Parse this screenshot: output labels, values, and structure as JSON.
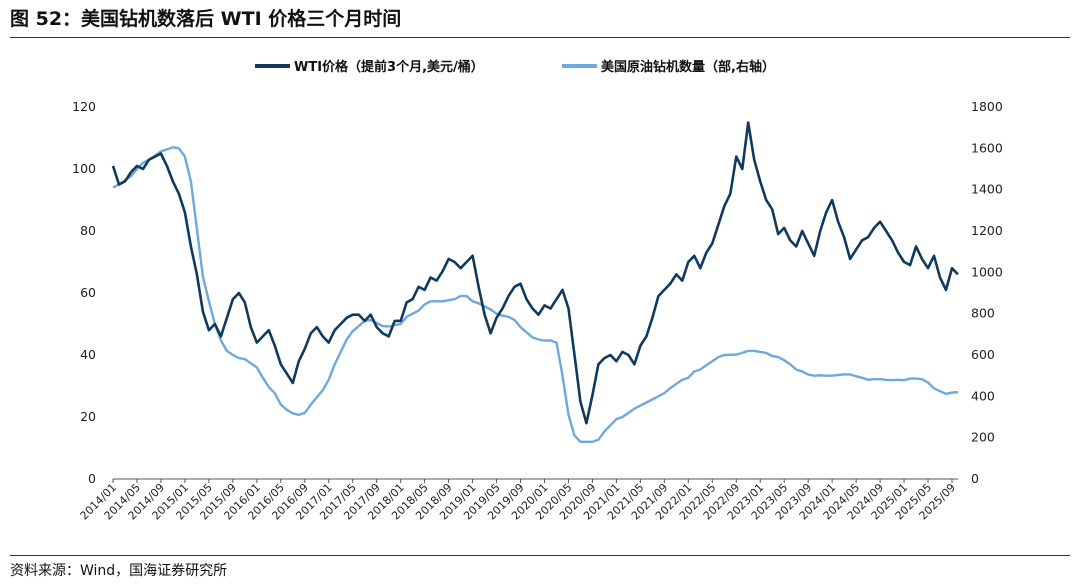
{
  "figure": {
    "title": "图 52：美国钻机数落后 WTI 价格三个月时间",
    "source": "资料来源：Wind，国海证券研究所"
  },
  "colors": {
    "wti": "#0f3a5e",
    "rigs": "#6fa8dc",
    "axis": "#555555"
  },
  "chart_data": {
    "type": "line",
    "legend_position": "top-center",
    "grid": false,
    "x_tick_labels": [
      "2014/01",
      "2014/05",
      "2014/09",
      "2015/01",
      "2015/05",
      "2015/09",
      "2016/01",
      "2016/05",
      "2016/09",
      "2017/01",
      "2017/05",
      "2017/09",
      "2018/01",
      "2018/05",
      "2018/09",
      "2019/01",
      "2019/05",
      "2019/09",
      "2020/01",
      "2020/05",
      "2020/09",
      "2021/01",
      "2021/05",
      "2021/09",
      "2022/01",
      "2022/05",
      "2022/09",
      "2023/01",
      "2023/05",
      "2023/09",
      "2024/01",
      "2024/05",
      "2024/09",
      "2025/01",
      "2025/05",
      "2025/09"
    ],
    "x_range": [
      "2014/01",
      "2025/10"
    ],
    "y_left": {
      "ylim": [
        0,
        120
      ],
      "ticks": [
        0,
        20,
        40,
        60,
        80,
        100,
        120
      ]
    },
    "y_right": {
      "ylim": [
        0,
        1800
      ],
      "ticks": [
        0,
        200,
        400,
        600,
        800,
        1000,
        1200,
        1400,
        1600,
        1800
      ]
    },
    "series": [
      {
        "name": "WTI价格（提前3个月,美元/桶）",
        "axis": "left",
        "points": [
          [
            "2014/01",
            101
          ],
          [
            "2014/02",
            95
          ],
          [
            "2014/03",
            96
          ],
          [
            "2014/04",
            99
          ],
          [
            "2014/05",
            101
          ],
          [
            "2014/06",
            100
          ],
          [
            "2014/07",
            103
          ],
          [
            "2014/08",
            104
          ],
          [
            "2014/09",
            105
          ],
          [
            "2014/10",
            101
          ],
          [
            "2014/11",
            96
          ],
          [
            "2014/12",
            92
          ],
          [
            "2015/01",
            86
          ],
          [
            "2015/02",
            75
          ],
          [
            "2015/03",
            66
          ],
          [
            "2015/04",
            54
          ],
          [
            "2015/05",
            48
          ],
          [
            "2015/06",
            50
          ],
          [
            "2015/07",
            46
          ],
          [
            "2015/08",
            52
          ],
          [
            "2015/09",
            58
          ],
          [
            "2015/10",
            60
          ],
          [
            "2015/11",
            57
          ],
          [
            "2015/12",
            49
          ],
          [
            "2016/01",
            44
          ],
          [
            "2016/02",
            46
          ],
          [
            "2016/03",
            48
          ],
          [
            "2016/04",
            43
          ],
          [
            "2016/05",
            37
          ],
          [
            "2016/06",
            34
          ],
          [
            "2016/07",
            31
          ],
          [
            "2016/08",
            38
          ],
          [
            "2016/09",
            42
          ],
          [
            "2016/10",
            47
          ],
          [
            "2016/11",
            49
          ],
          [
            "2016/12",
            46
          ],
          [
            "2017/01",
            44
          ],
          [
            "2017/02",
            48
          ],
          [
            "2017/03",
            50
          ],
          [
            "2017/04",
            52
          ],
          [
            "2017/05",
            53
          ],
          [
            "2017/06",
            53
          ],
          [
            "2017/07",
            51
          ],
          [
            "2017/08",
            53
          ],
          [
            "2017/09",
            49
          ],
          [
            "2017/10",
            47
          ],
          [
            "2017/11",
            46
          ],
          [
            "2017/12",
            51
          ],
          [
            "2018/01",
            51
          ],
          [
            "2018/02",
            57
          ],
          [
            "2018/03",
            58
          ],
          [
            "2018/04",
            62
          ],
          [
            "2018/05",
            61
          ],
          [
            "2018/06",
            65
          ],
          [
            "2018/07",
            64
          ],
          [
            "2018/08",
            67
          ],
          [
            "2018/09",
            71
          ],
          [
            "2018/10",
            70
          ],
          [
            "2018/11",
            68
          ],
          [
            "2018/12",
            70
          ],
          [
            "2019/01",
            72
          ],
          [
            "2019/02",
            62
          ],
          [
            "2019/03",
            53
          ],
          [
            "2019/04",
            47
          ],
          [
            "2019/05",
            52
          ],
          [
            "2019/06",
            55
          ],
          [
            "2019/07",
            59
          ],
          [
            "2019/08",
            62
          ],
          [
            "2019/09",
            63
          ],
          [
            "2019/10",
            58
          ],
          [
            "2019/11",
            55
          ],
          [
            "2019/12",
            53
          ],
          [
            "2020/01",
            56
          ],
          [
            "2020/02",
            55
          ],
          [
            "2020/03",
            58
          ],
          [
            "2020/04",
            61
          ],
          [
            "2020/05",
            55
          ],
          [
            "2020/06",
            40
          ],
          [
            "2020/07",
            25
          ],
          [
            "2020/08",
            18
          ],
          [
            "2020/09",
            27
          ],
          [
            "2020/10",
            37
          ],
          [
            "2020/11",
            39
          ],
          [
            "2020/12",
            40
          ],
          [
            "2021/01",
            38
          ],
          [
            "2021/02",
            41
          ],
          [
            "2021/03",
            40
          ],
          [
            "2021/04",
            37
          ],
          [
            "2021/05",
            43
          ],
          [
            "2021/06",
            46
          ],
          [
            "2021/07",
            52
          ],
          [
            "2021/08",
            59
          ],
          [
            "2021/09",
            61
          ],
          [
            "2021/10",
            63
          ],
          [
            "2021/11",
            66
          ],
          [
            "2021/12",
            64
          ],
          [
            "2022/01",
            70
          ],
          [
            "2022/02",
            72
          ],
          [
            "2022/03",
            68
          ],
          [
            "2022/04",
            73
          ],
          [
            "2022/05",
            76
          ],
          [
            "2022/06",
            82
          ],
          [
            "2022/07",
            88
          ],
          [
            "2022/08",
            92
          ],
          [
            "2022/09",
            104
          ],
          [
            "2022/10",
            100
          ],
          [
            "2022/11",
            115
          ],
          [
            "2022/12",
            103
          ],
          [
            "2023/01",
            96
          ],
          [
            "2023/02",
            90
          ],
          [
            "2023/03",
            87
          ],
          [
            "2023/04",
            79
          ],
          [
            "2023/05",
            81
          ],
          [
            "2023/06",
            77
          ],
          [
            "2023/07",
            75
          ],
          [
            "2023/08",
            80
          ],
          [
            "2023/09",
            76
          ],
          [
            "2023/10",
            72
          ],
          [
            "2023/11",
            80
          ],
          [
            "2023/12",
            86
          ],
          [
            "2024/01",
            90
          ],
          [
            "2024/02",
            83
          ],
          [
            "2024/03",
            78
          ],
          [
            "2024/04",
            71
          ],
          [
            "2024/05",
            74
          ],
          [
            "2024/06",
            77
          ],
          [
            "2024/07",
            78
          ],
          [
            "2024/08",
            81
          ],
          [
            "2024/09",
            83
          ],
          [
            "2024/10",
            80
          ],
          [
            "2024/11",
            77
          ],
          [
            "2024/12",
            73
          ],
          [
            "2025/01",
            70
          ],
          [
            "2025/02",
            69
          ],
          [
            "2025/03",
            75
          ],
          [
            "2025/04",
            71
          ],
          [
            "2025/05",
            68
          ],
          [
            "2025/06",
            72
          ],
          [
            "2025/07",
            65
          ],
          [
            "2025/08",
            61
          ],
          [
            "2025/09",
            68
          ],
          [
            "2025/10",
            66
          ]
        ]
      },
      {
        "name": "美国原油钻机数量（部,右轴）",
        "axis": "right",
        "points": [
          [
            "2014/01",
            1410
          ],
          [
            "2014/02",
            1425
          ],
          [
            "2014/03",
            1445
          ],
          [
            "2014/04",
            1465
          ],
          [
            "2014/05",
            1500
          ],
          [
            "2014/06",
            1530
          ],
          [
            "2014/07",
            1545
          ],
          [
            "2014/08",
            1565
          ],
          [
            "2014/09",
            1585
          ],
          [
            "2014/10",
            1595
          ],
          [
            "2014/11",
            1605
          ],
          [
            "2014/12",
            1600
          ],
          [
            "2015/01",
            1560
          ],
          [
            "2015/02",
            1440
          ],
          [
            "2015/03",
            1210
          ],
          [
            "2015/04",
            980
          ],
          [
            "2015/05",
            860
          ],
          [
            "2015/06",
            750
          ],
          [
            "2015/07",
            670
          ],
          [
            "2015/08",
            620
          ],
          [
            "2015/09",
            600
          ],
          [
            "2015/10",
            585
          ],
          [
            "2015/11",
            580
          ],
          [
            "2015/12",
            560
          ],
          [
            "2016/01",
            540
          ],
          [
            "2016/02",
            490
          ],
          [
            "2016/03",
            445
          ],
          [
            "2016/04",
            415
          ],
          [
            "2016/05",
            360
          ],
          [
            "2016/06",
            335
          ],
          [
            "2016/07",
            318
          ],
          [
            "2016/08",
            310
          ],
          [
            "2016/09",
            320
          ],
          [
            "2016/10",
            360
          ],
          [
            "2016/11",
            395
          ],
          [
            "2016/12",
            430
          ],
          [
            "2017/01",
            480
          ],
          [
            "2017/02",
            555
          ],
          [
            "2017/03",
            615
          ],
          [
            "2017/04",
            675
          ],
          [
            "2017/05",
            715
          ],
          [
            "2017/06",
            740
          ],
          [
            "2017/07",
            765
          ],
          [
            "2017/08",
            770
          ],
          [
            "2017/09",
            755
          ],
          [
            "2017/10",
            740
          ],
          [
            "2017/11",
            738
          ],
          [
            "2017/12",
            744
          ],
          [
            "2018/01",
            750
          ],
          [
            "2018/02",
            785
          ],
          [
            "2018/03",
            800
          ],
          [
            "2018/04",
            815
          ],
          [
            "2018/05",
            845
          ],
          [
            "2018/06",
            860
          ],
          [
            "2018/07",
            860
          ],
          [
            "2018/08",
            860
          ],
          [
            "2018/09",
            865
          ],
          [
            "2018/10",
            870
          ],
          [
            "2018/11",
            885
          ],
          [
            "2018/12",
            885
          ],
          [
            "2019/01",
            860
          ],
          [
            "2019/02",
            850
          ],
          [
            "2019/03",
            835
          ],
          [
            "2019/04",
            820
          ],
          [
            "2019/05",
            800
          ],
          [
            "2019/06",
            790
          ],
          [
            "2019/07",
            785
          ],
          [
            "2019/08",
            770
          ],
          [
            "2019/09",
            735
          ],
          [
            "2019/10",
            710
          ],
          [
            "2019/11",
            685
          ],
          [
            "2019/12",
            675
          ],
          [
            "2020/01",
            670
          ],
          [
            "2020/02",
            670
          ],
          [
            "2020/03",
            660
          ],
          [
            "2020/04",
            500
          ],
          [
            "2020/05",
            310
          ],
          [
            "2020/06",
            210
          ],
          [
            "2020/07",
            180
          ],
          [
            "2020/08",
            180
          ],
          [
            "2020/09",
            180
          ],
          [
            "2020/10",
            190
          ],
          [
            "2020/11",
            230
          ],
          [
            "2020/12",
            260
          ],
          [
            "2021/01",
            290
          ],
          [
            "2021/02",
            300
          ],
          [
            "2021/03",
            320
          ],
          [
            "2021/04",
            340
          ],
          [
            "2021/05",
            355
          ],
          [
            "2021/06",
            370
          ],
          [
            "2021/07",
            385
          ],
          [
            "2021/08",
            400
          ],
          [
            "2021/09",
            415
          ],
          [
            "2021/10",
            440
          ],
          [
            "2021/11",
            460
          ],
          [
            "2021/12",
            480
          ],
          [
            "2022/01",
            490
          ],
          [
            "2022/02",
            520
          ],
          [
            "2022/03",
            530
          ],
          [
            "2022/04",
            550
          ],
          [
            "2022/05",
            570
          ],
          [
            "2022/06",
            590
          ],
          [
            "2022/07",
            600
          ],
          [
            "2022/08",
            601
          ],
          [
            "2022/09",
            602
          ],
          [
            "2022/10",
            610
          ],
          [
            "2022/11",
            620
          ],
          [
            "2022/12",
            620
          ],
          [
            "2023/01",
            615
          ],
          [
            "2023/02",
            610
          ],
          [
            "2023/03",
            595
          ],
          [
            "2023/04",
            590
          ],
          [
            "2023/05",
            575
          ],
          [
            "2023/06",
            555
          ],
          [
            "2023/07",
            530
          ],
          [
            "2023/08",
            520
          ],
          [
            "2023/09",
            505
          ],
          [
            "2023/10",
            500
          ],
          [
            "2023/11",
            502
          ],
          [
            "2023/12",
            500
          ],
          [
            "2024/01",
            500
          ],
          [
            "2024/02",
            503
          ],
          [
            "2024/03",
            506
          ],
          [
            "2024/04",
            506
          ],
          [
            "2024/05",
            497
          ],
          [
            "2024/06",
            490
          ],
          [
            "2024/07",
            480
          ],
          [
            "2024/08",
            483
          ],
          [
            "2024/09",
            483
          ],
          [
            "2024/10",
            480
          ],
          [
            "2024/11",
            478
          ],
          [
            "2024/12",
            480
          ],
          [
            "2025/01",
            478
          ],
          [
            "2025/02",
            486
          ],
          [
            "2025/03",
            486
          ],
          [
            "2025/04",
            483
          ],
          [
            "2025/05",
            467
          ],
          [
            "2025/06",
            439
          ],
          [
            "2025/07",
            425
          ],
          [
            "2025/08",
            412
          ],
          [
            "2025/09",
            418
          ],
          [
            "2025/10",
            420
          ]
        ]
      }
    ]
  }
}
